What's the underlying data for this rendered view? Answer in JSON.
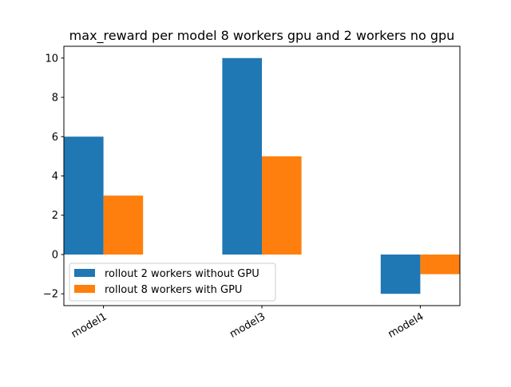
{
  "chart_data": {
    "type": "bar",
    "title": "max_reward per model 8 workers gpu and 2 workers no gpu",
    "xlabel": "",
    "ylabel": "",
    "categories": [
      "model1",
      "model3",
      "model4"
    ],
    "series": [
      {
        "name": "rollout 2 workers without GPU",
        "color": "#1f77b4",
        "values": [
          6,
          10,
          -2
        ]
      },
      {
        "name": "rollout 8 workers with GPU",
        "color": "#ff7f0e",
        "values": [
          3,
          5,
          -1
        ]
      }
    ],
    "ylim": [
      -2.6,
      10.6
    ],
    "yticks": [
      {
        "value": -2,
        "label": "−2"
      },
      {
        "value": 0,
        "label": "0"
      },
      {
        "value": 2,
        "label": "2"
      },
      {
        "value": 4,
        "label": "4"
      },
      {
        "value": 6,
        "label": "6"
      },
      {
        "value": 8,
        "label": "8"
      },
      {
        "value": 10,
        "label": "10"
      }
    ],
    "xtick_rotation_deg": 30,
    "grid": false,
    "legend_position": "lower-left"
  }
}
